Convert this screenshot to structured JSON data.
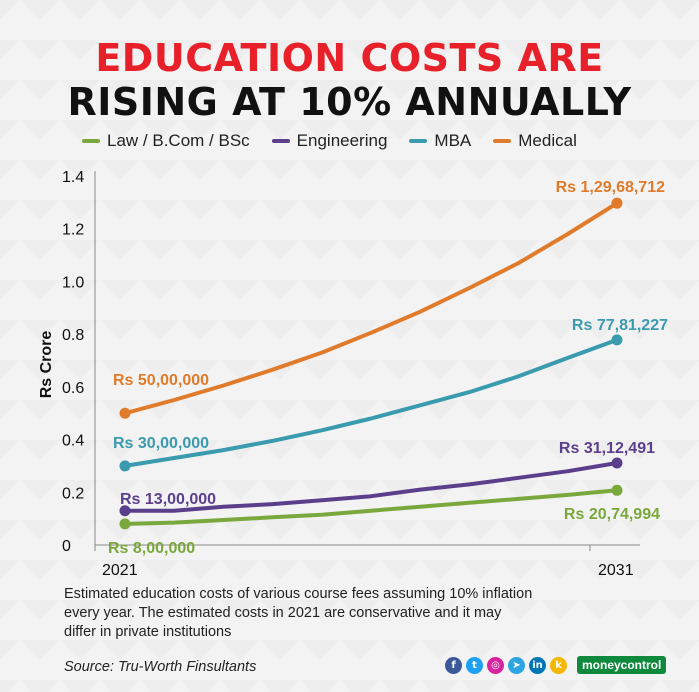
{
  "title_line1": "EDUCATION COSTS ARE",
  "title_line2": "RISING AT 10% ANNUALLY",
  "note": "Estimated education costs of various course fees assuming 10% inflation every year. The estimated costs in 2021 are conservative and it may differ in private institutions",
  "source": "Source: Tru-Worth Finsultants",
  "brand": "moneycontrol",
  "social_icons": [
    "facebook-icon",
    "twitter-icon",
    "instagram-icon",
    "telegram-icon",
    "linkedin-icon",
    "koo-icon"
  ],
  "colors": {
    "title_red": "#e8202a",
    "law": "#7aa83c",
    "engineering": "#5b3f8c",
    "mba": "#3a9aae",
    "medical": "#e07b2c"
  },
  "chart_data": {
    "type": "line",
    "title": "EDUCATION COSTS ARE RISING AT 10% ANNUALLY",
    "xlabel": "",
    "ylabel": "Rs Crore",
    "ylim": [
      0,
      1.4
    ],
    "yticks": [
      0,
      0.2,
      0.4,
      0.6,
      0.8,
      1.0,
      1.2,
      1.4
    ],
    "ytick_labels": [
      "0",
      "0.2",
      "0.4",
      "0.6",
      "0.8",
      "1.0",
      "1.2",
      "1.4"
    ],
    "x": [
      2021,
      2022,
      2023,
      2024,
      2025,
      2026,
      2027,
      2028,
      2029,
      2030,
      2031
    ],
    "xtick_labels": [
      "2021",
      "2031"
    ],
    "legend_position": "top",
    "series": [
      {
        "name": "Law / B.Com / BSc",
        "values": [
          0.08,
          0.085,
          0.095,
          0.105,
          0.115,
          0.13,
          0.145,
          0.16,
          0.175,
          0.19,
          0.2075
        ],
        "start_label": "Rs 8,00,000",
        "end_label": "Rs 20,74,994"
      },
      {
        "name": "Engineering",
        "values": [
          0.13,
          0.13,
          0.145,
          0.155,
          0.17,
          0.185,
          0.21,
          0.23,
          0.255,
          0.28,
          0.3112
        ],
        "start_label": "Rs 13,00,000",
        "end_label": "Rs 31,12,491"
      },
      {
        "name": "MBA",
        "values": [
          0.3,
          0.33,
          0.36,
          0.395,
          0.435,
          0.48,
          0.53,
          0.58,
          0.64,
          0.71,
          0.7781
        ],
        "start_label": "Rs 30,00,000",
        "end_label": "Rs 77,81,227"
      },
      {
        "name": "Medical",
        "values": [
          0.5,
          0.55,
          0.605,
          0.665,
          0.73,
          0.805,
          0.885,
          0.975,
          1.07,
          1.18,
          1.2969
        ],
        "start_label": "Rs 50,00,000",
        "end_label": "Rs 1,29,68,712"
      }
    ]
  }
}
